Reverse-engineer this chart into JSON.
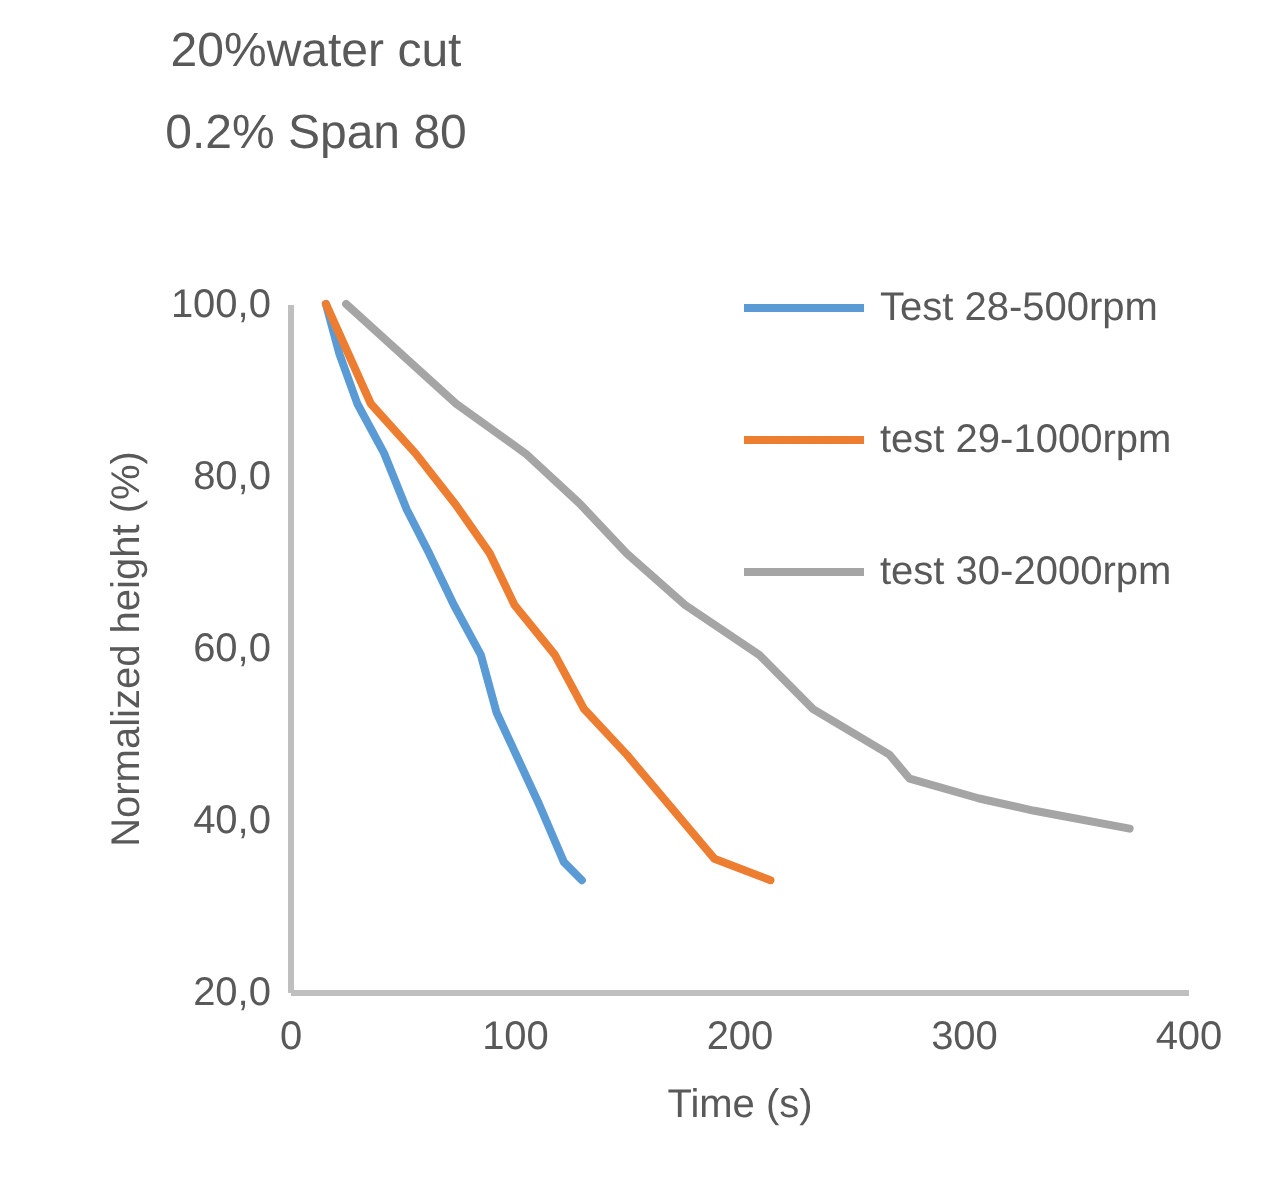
{
  "chart_data": {
    "type": "line",
    "title": "20%water cut",
    "subtitle": "0.2% Span 80",
    "xlabel": "Time (s)",
    "ylabel": "Normalized height (%)",
    "xlim": [
      0,
      400
    ],
    "xticks": [
      0,
      100,
      200,
      300,
      400
    ],
    "ylim": [
      20,
      100
    ],
    "yticks": [
      {
        "value": 20,
        "label": "20,0"
      },
      {
        "value": 40,
        "label": "40,0"
      },
      {
        "value": 60,
        "label": "60,0"
      },
      {
        "value": 80,
        "label": "80,0"
      },
      {
        "value": 100,
        "label": "100,0"
      }
    ],
    "grid": false,
    "legend": "top right",
    "marker": "none",
    "line_style": "solid",
    "series": [
      {
        "name": "Test 28-500rpm",
        "color": "#5b9bd5",
        "x": [
          16,
          22,
          30,
          42,
          52,
          62,
          73,
          85,
          92,
          111,
          122,
          130
        ],
        "values": [
          100,
          94.2,
          88.4,
          82.6,
          76.1,
          71,
          65,
          59.2,
          52.5,
          41.8,
          35.1,
          33
        ]
      },
      {
        "name": "test 29-1000rpm",
        "color": "#ed7d31",
        "x": [
          16,
          36,
          56,
          74,
          89,
          100,
          118,
          131,
          150,
          189,
          214
        ],
        "values": [
          100,
          88.4,
          82.6,
          76.6,
          71,
          65,
          59.2,
          52.9,
          47.6,
          35.5,
          33
        ]
      },
      {
        "name": "test 30-2000rpm",
        "color": "#a5a5a5",
        "x": [
          25,
          74,
          105,
          129,
          150,
          176,
          209,
          233,
          267,
          276,
          307,
          331,
          374
        ],
        "values": [
          100,
          88.4,
          82.6,
          76.8,
          71,
          65,
          59.2,
          52.9,
          47.6,
          44.8,
          42.5,
          41.1,
          39
        ]
      }
    ]
  }
}
